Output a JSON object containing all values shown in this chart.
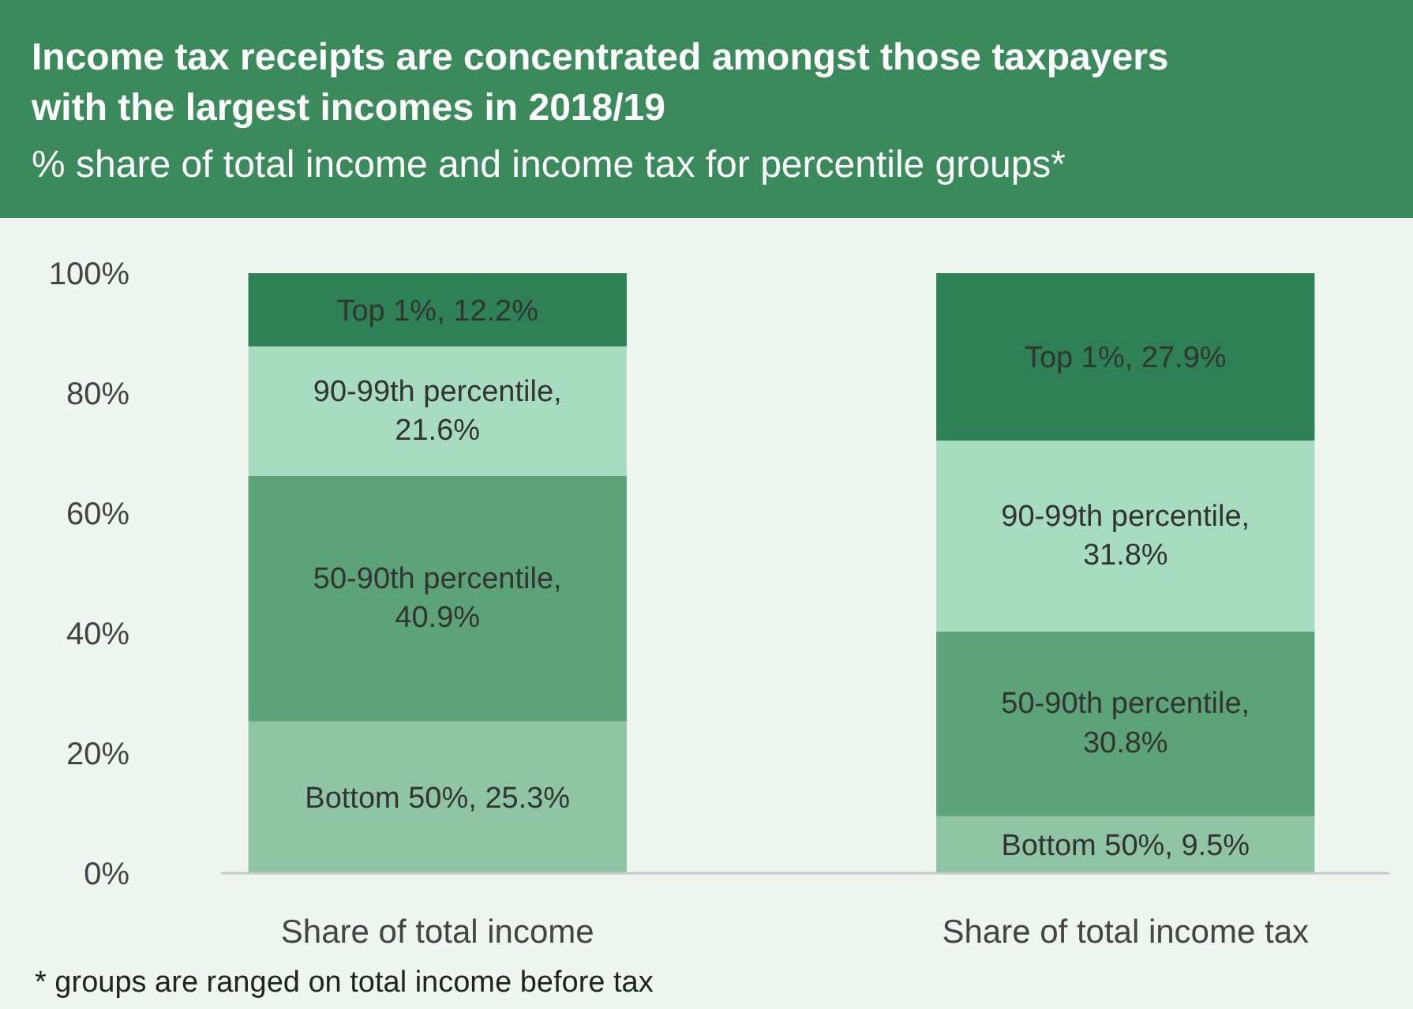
{
  "chart_data": {
    "type": "bar",
    "stacked": true,
    "title": "Income tax receipts are concentrated amongst those taxpayers with the largest incomes in 2018/19",
    "subtitle": "% share of total income and income tax for percentile groups*",
    "categories": [
      "Share of total income",
      "Share of total income tax"
    ],
    "series": [
      {
        "name": "Bottom 50%,",
        "color": "#8fc4a4",
        "values": [
          25.3,
          9.5
        ],
        "value_labels": [
          "25.3%",
          "9.5%"
        ]
      },
      {
        "name": "50-90th percentile,",
        "color": "#5da37a",
        "values": [
          40.9,
          30.8
        ],
        "value_labels": [
          "40.9%",
          "30.8%"
        ]
      },
      {
        "name": "90-99th percentile,",
        "color": "#a8dcc0",
        "values": [
          21.6,
          31.8
        ],
        "value_labels": [
          "21.6%",
          "31.8%"
        ]
      },
      {
        "name": "Top 1%,",
        "color": "#2e8057",
        "values": [
          12.2,
          27.9
        ],
        "value_labels": [
          "12.2%",
          "27.9%"
        ]
      }
    ],
    "ylim": [
      0,
      100
    ],
    "yticks": [
      {
        "value": 0,
        "label": "0%"
      },
      {
        "value": 20,
        "label": "20%"
      },
      {
        "value": 40,
        "label": "40%"
      },
      {
        "value": 60,
        "label": "60%"
      },
      {
        "value": 80,
        "label": "80%"
      },
      {
        "value": 100,
        "label": "100%"
      }
    ],
    "grid": false,
    "annotations": [
      "* groups are ranged on total income before tax"
    ]
  }
}
